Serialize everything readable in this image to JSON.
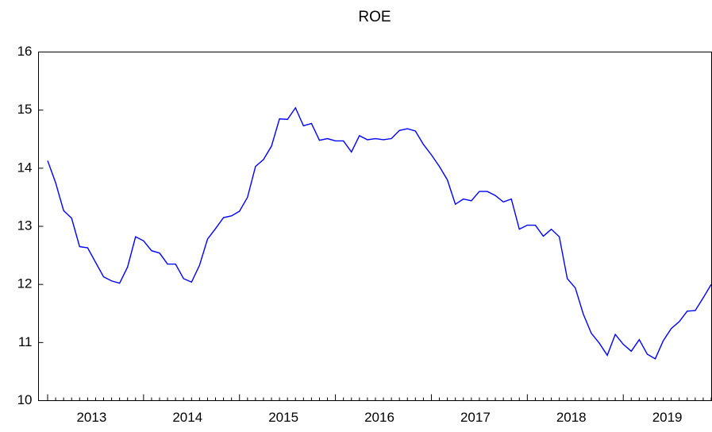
{
  "chart_data": {
    "type": "line",
    "title": "ROE",
    "categories": [
      null,
      null,
      null,
      null,
      null,
      "2013",
      null,
      null,
      null,
      null,
      null,
      null,
      null,
      null,
      null,
      null,
      null,
      "2014",
      null,
      null,
      null,
      null,
      null,
      null,
      null,
      null,
      null,
      null,
      null,
      "2015",
      null,
      null,
      null,
      null,
      null,
      null,
      null,
      null,
      null,
      null,
      null,
      "2016",
      null,
      null,
      null,
      null,
      null,
      null,
      null,
      null,
      null,
      null,
      null,
      "2017",
      null,
      null,
      null,
      null,
      null,
      null,
      null,
      null,
      null,
      null,
      null,
      "2018",
      null,
      null,
      null,
      null,
      null,
      null,
      null,
      null,
      null,
      null,
      null,
      "2019",
      null,
      null,
      null,
      null,
      null,
      null
    ],
    "values": [
      14.13,
      13.75,
      13.27,
      13.14,
      12.65,
      12.63,
      12.38,
      12.13,
      12.06,
      12.02,
      12.3,
      12.82,
      12.75,
      12.58,
      12.54,
      12.35,
      12.35,
      12.1,
      12.04,
      12.33,
      12.78,
      12.96,
      13.15,
      13.18,
      13.26,
      13.5,
      14.03,
      14.15,
      14.38,
      14.85,
      14.84,
      15.04,
      14.73,
      14.77,
      14.48,
      14.51,
      14.47,
      14.47,
      14.28,
      14.56,
      14.49,
      14.51,
      14.49,
      14.51,
      14.65,
      14.68,
      14.64,
      14.41,
      14.23,
      14.03,
      13.8,
      13.38,
      13.47,
      13.44,
      13.6,
      13.6,
      13.53,
      13.42,
      13.47,
      12.95,
      13.02,
      13.02,
      12.83,
      12.95,
      12.82,
      12.1,
      11.94,
      11.49,
      11.16,
      10.99,
      10.78,
      11.14,
      10.97,
      10.85,
      11.05,
      10.8,
      10.72,
      11.03,
      11.24,
      11.36,
      11.54,
      11.55,
      11.77,
      12.0
    ],
    "color": "#0000ff",
    "ylim": [
      10,
      16
    ],
    "yticks": [
      10,
      11,
      12,
      13,
      14,
      15,
      16
    ]
  }
}
